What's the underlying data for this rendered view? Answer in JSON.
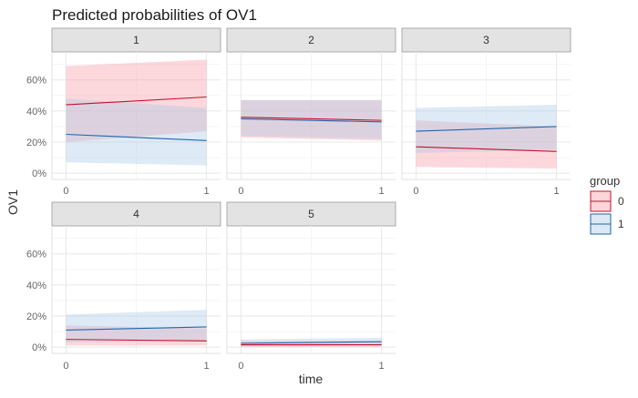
{
  "chart_data": {
    "type": "line",
    "title": "Predicted probabilities of OV1",
    "xlabel": "time",
    "ylabel": "OV1",
    "x": [
      0,
      1
    ],
    "x_ticks": [
      "0",
      "1"
    ],
    "y_ticks": [
      "0%",
      "20%",
      "40%",
      "60%"
    ],
    "ylim": [
      -0.04,
      0.78
    ],
    "legend": {
      "title": "group",
      "entries": [
        "0",
        "1"
      ],
      "position": "right"
    },
    "colors": {
      "0": "#c8102e",
      "1": "#2166ac",
      "fill0": "#f8a3ab",
      "fill1": "#a8c8e6"
    },
    "panels": [
      {
        "label": "1",
        "series": [
          {
            "name": "0",
            "y": [
              0.44,
              0.49
            ],
            "lower": [
              0.2,
              0.27
            ],
            "upper": [
              0.69,
              0.73
            ]
          },
          {
            "name": "1",
            "y": [
              0.25,
              0.21
            ],
            "lower": [
              0.07,
              0.05
            ],
            "upper": [
              0.48,
              0.42
            ]
          }
        ]
      },
      {
        "label": "2",
        "series": [
          {
            "name": "0",
            "y": [
              0.36,
              0.34
            ],
            "lower": [
              0.23,
              0.21
            ],
            "upper": [
              0.47,
              0.47
            ]
          },
          {
            "name": "1",
            "y": [
              0.35,
              0.33
            ],
            "lower": [
              0.24,
              0.22
            ],
            "upper": [
              0.47,
              0.47
            ]
          }
        ]
      },
      {
        "label": "3",
        "series": [
          {
            "name": "0",
            "y": [
              0.17,
              0.14
            ],
            "lower": [
              0.04,
              0.03
            ],
            "upper": [
              0.34,
              0.3
            ]
          },
          {
            "name": "1",
            "y": [
              0.27,
              0.3
            ],
            "lower": [
              0.13,
              0.15
            ],
            "upper": [
              0.42,
              0.44
            ]
          }
        ]
      },
      {
        "label": "4",
        "series": [
          {
            "name": "0",
            "y": [
              0.05,
              0.04
            ],
            "lower": [
              0.01,
              0.01
            ],
            "upper": [
              0.14,
              0.12
            ]
          },
          {
            "name": "1",
            "y": [
              0.11,
              0.13
            ],
            "lower": [
              0.03,
              0.04
            ],
            "upper": [
              0.21,
              0.24
            ]
          }
        ]
      },
      {
        "label": "5",
        "series": [
          {
            "name": "0",
            "y": [
              0.015,
              0.015
            ],
            "lower": [
              0.0,
              0.0
            ],
            "upper": [
              0.04,
              0.04
            ]
          },
          {
            "name": "1",
            "y": [
              0.025,
              0.035
            ],
            "lower": [
              0.005,
              0.01
            ],
            "upper": [
              0.05,
              0.06
            ]
          }
        ]
      }
    ]
  }
}
